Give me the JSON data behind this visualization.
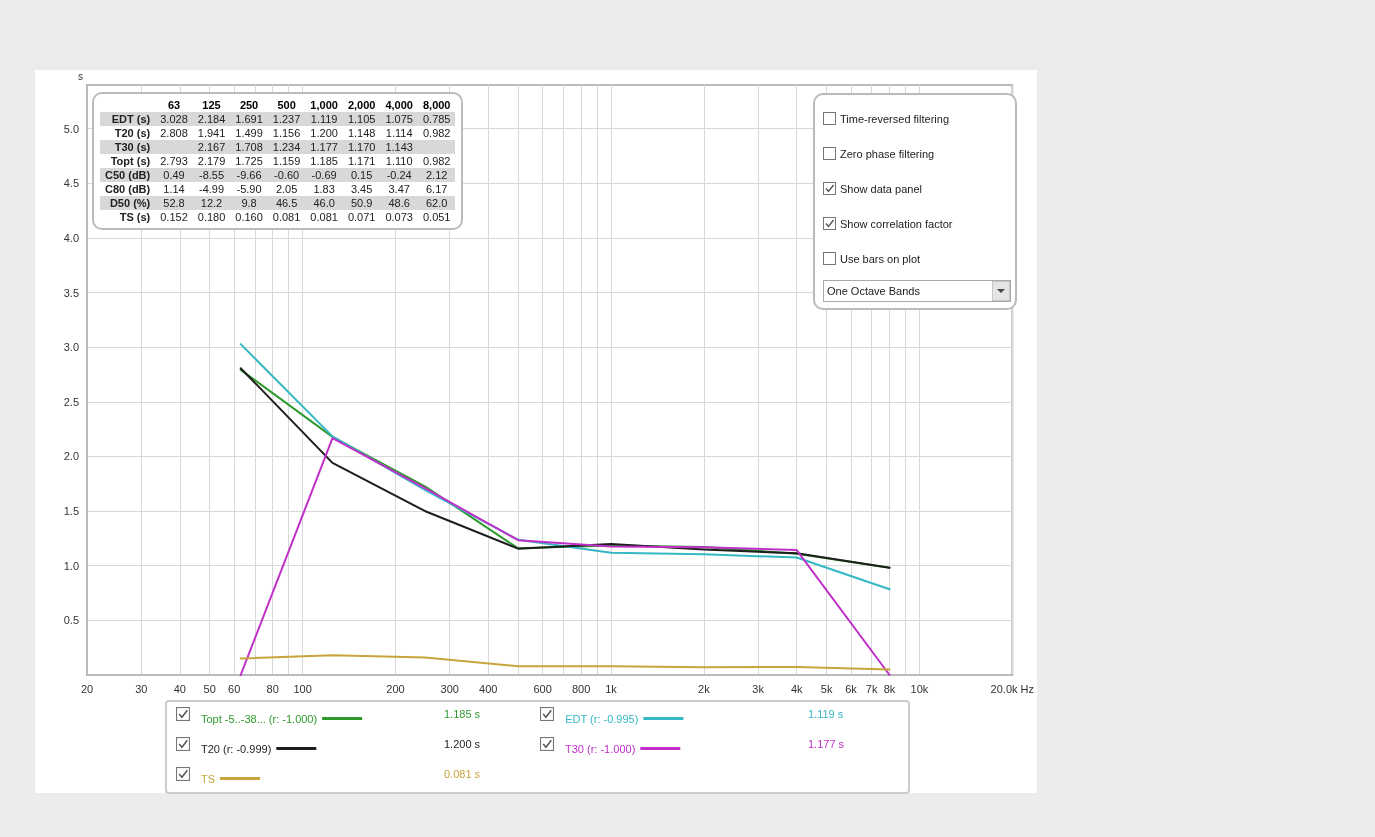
{
  "chart_data": [
    {
      "type": "line",
      "ylabel": "s",
      "x": [
        63,
        125,
        250,
        500,
        1000,
        2000,
        4000,
        8000
      ],
      "series": [
        {
          "name": "Topt -5..-38... (r: -1.000)",
          "color": "#2e9a2e",
          "values": [
            2.793,
            2.179,
            1.725,
            1.159,
            1.185,
            1.171,
            1.11,
            0.982
          ]
        },
        {
          "name": "EDT (r: -0.995)",
          "color": "#34b8c4",
          "values": [
            3.028,
            2.184,
            1.691,
            1.237,
            1.119,
            1.105,
            1.075,
            0.785
          ]
        },
        {
          "name": "T20 (r: -0.999)",
          "color": "#1e1e1e",
          "values": [
            2.808,
            1.941,
            1.499,
            1.156,
            1.2,
            1.148,
            1.114,
            0.982
          ]
        },
        {
          "name": "T30 (r: -1.000)",
          "color": "#c030c8",
          "values": [
            0,
            2.167,
            1.708,
            1.234,
            1.177,
            1.17,
            1.143,
            0
          ]
        },
        {
          "name": "TS",
          "color": "#c8a43c",
          "values": [
            0.152,
            0.18,
            0.16,
            0.081,
            0.081,
            0.071,
            0.073,
            0.051
          ]
        }
      ],
      "annotations": [
        "1.185 s",
        "1.119 s",
        "1.200 s",
        "1.177 s",
        "0.081 s"
      ],
      "log": "x",
      "xlim": [
        20,
        20000
      ],
      "xticks": [
        20,
        30,
        40,
        50,
        60,
        {
          "value": 70,
          "label": null
        },
        80,
        {
          "value": 90,
          "label": null
        },
        100,
        200,
        300,
        400,
        {
          "value": 500,
          "label": null
        },
        600,
        {
          "value": 700,
          "label": null
        },
        800,
        {
          "value": 900,
          "label": null
        },
        {
          "value": 1000,
          "label": "1k"
        },
        {
          "value": 2000,
          "label": "2k"
        },
        {
          "value": 3000,
          "label": "3k"
        },
        {
          "value": 4000,
          "label": "4k"
        },
        {
          "value": 5000,
          "label": "5k"
        },
        {
          "value": 6000,
          "label": "6k"
        },
        {
          "value": 7000,
          "label": "7k"
        },
        {
          "value": 8000,
          "label": "8k"
        },
        {
          "value": 9000,
          "label": null
        },
        {
          "value": 10000,
          "label": "10k"
        },
        {
          "value": 20000,
          "label": "20.0k Hz"
        }
      ],
      "ylim": [
        0,
        5.4
      ],
      "yticks": [
        0.5,
        {
          "value": 1,
          "label": "1.0"
        },
        1.5,
        {
          "value": 2,
          "label": "2.0"
        },
        2.5,
        {
          "value": 3,
          "label": "3.0"
        },
        3.5,
        {
          "value": 4,
          "label": "4.0"
        },
        4.5,
        {
          "value": 5,
          "label": "5.0"
        }
      ],
      "grid": true,
      "legend": "bottom",
      "marker": "none",
      "line_style": "solid"
    },
    {
      "type": "other",
      "categories": [
        "63",
        "125",
        "250",
        "500",
        "1,000",
        "2,000",
        "4,000",
        "8,000"
      ],
      "series": [
        {
          "name": "EDT (s)",
          "values": [
            3.028,
            2.184,
            1.691,
            1.237,
            1.119,
            1.105,
            1.075,
            0.785
          ],
          "value_labels": [
            "3.028",
            "2.184",
            "1.691",
            "1.237",
            "1.119",
            "1.105",
            "1.075",
            "0.785"
          ]
        },
        {
          "name": "T20 (s)",
          "values": [
            2.808,
            1.941,
            1.499,
            1.156,
            1.2,
            1.148,
            1.114,
            0.982
          ],
          "value_labels": [
            "2.808",
            "1.941",
            "1.499",
            "1.156",
            "1.200",
            "1.148",
            "1.114",
            "0.982"
          ]
        },
        {
          "name": "T30 (s)",
          "values": [
            null,
            2.167,
            1.708,
            1.234,
            1.177,
            1.17,
            1.143,
            null
          ],
          "value_labels": [
            null,
            "2.167",
            "1.708",
            "1.234",
            "1.177",
            "1.170",
            "1.143",
            null
          ]
        },
        {
          "name": "Topt (s)",
          "values": [
            2.793,
            2.179,
            1.725,
            1.159,
            1.185,
            1.171,
            1.11,
            0.982
          ],
          "value_labels": [
            "2.793",
            "2.179",
            "1.725",
            "1.159",
            "1.185",
            "1.171",
            "1.110",
            "0.982"
          ]
        },
        {
          "name": "C50 (dB)",
          "values": [
            0.49,
            -8.55,
            -9.66,
            -0.6,
            -0.69,
            0.15,
            -0.24,
            2.12
          ],
          "value_labels": [
            "0.49",
            "-8.55",
            "-9.66",
            "-0.60",
            "-0.69",
            "0.15",
            "-0.24",
            "2.12"
          ]
        },
        {
          "name": "C80 (dB)",
          "values": [
            1.14,
            -4.99,
            -5.9,
            2.05,
            1.83,
            3.45,
            3.47,
            6.17
          ],
          "value_labels": [
            "1.14",
            "-4.99",
            "-5.90",
            "2.05",
            "1.83",
            "3.45",
            "3.47",
            "6.17"
          ]
        },
        {
          "name": "D50 (%)",
          "values": [
            52.8,
            12.2,
            9.8,
            46.5,
            46.0,
            50.9,
            48.6,
            62.0
          ],
          "value_labels": [
            "52.8",
            "12.2",
            "9.8",
            "46.5",
            "46.0",
            "50.9",
            "48.6",
            "62.0"
          ]
        },
        {
          "name": "TS (s)",
          "values": [
            0.152,
            0.18,
            0.16,
            0.081,
            0.081,
            0.071,
            0.073,
            0.051
          ],
          "value_labels": [
            "0.152",
            "0.180",
            "0.160",
            "0.081",
            "0.081",
            "0.071",
            "0.073",
            "0.051"
          ]
        }
      ]
    },
    {
      "type": "other",
      "annotations": [
        "Time-reversed filtering",
        "Zero phase filtering",
        "Show data panel",
        "Show correlation factor",
        "Use bars on plot",
        "One Octave Bands"
      ]
    }
  ]
}
